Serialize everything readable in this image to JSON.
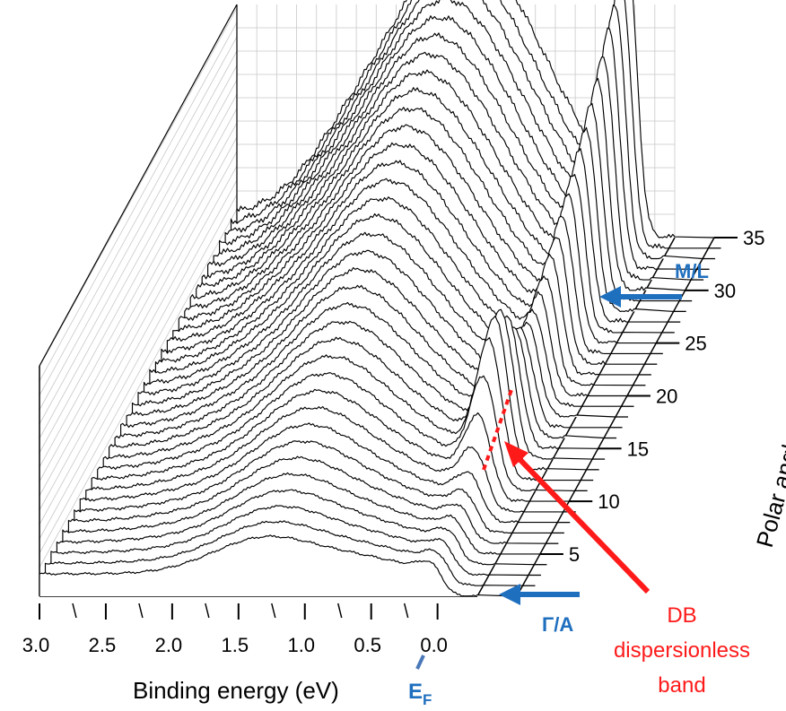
{
  "colors": {
    "curve": "#000000",
    "grid": "#c8c8c8",
    "blue_annotation": "#1f6fbf",
    "ef_marker": "#4a78b8",
    "red_annotation": "#ff1a1a"
  },
  "chart_data": {
    "type": "line",
    "style": "waterfall-3d",
    "xlabel": "Binding energy (eV)",
    "zlabel": "Polar angle(degree)",
    "x_ticks": [
      "3.0",
      "2.5",
      "2.0",
      "1.5",
      "1.0",
      "0.5",
      "0.0"
    ],
    "x_tick_values": [
      3.0,
      2.5,
      2.0,
      1.5,
      1.0,
      0.5,
      0.0
    ],
    "xlim": [
      3.0,
      -0.3
    ],
    "z_ticks": [
      "5",
      "10",
      "15",
      "20",
      "25",
      "30",
      "35"
    ],
    "z_tick_values": [
      5,
      10,
      15,
      20,
      25,
      30,
      35
    ],
    "zlim": [
      1,
      35
    ],
    "series_count": 35,
    "grid": true,
    "features": {
      "broad_peak_x": 1.3,
      "sharp_peak_x": 0.05,
      "sharp_peak_max_angle": 35,
      "gamma_peak_x": 0.1,
      "gamma_peak_angle": 13
    }
  },
  "annotations": {
    "ml_label": "M/L",
    "gamma_label": "Γ/A",
    "ef_label": "E",
    "ef_subscript": "F",
    "db_line1": "DB",
    "db_line2": "dispersionless",
    "db_line3": "band"
  }
}
